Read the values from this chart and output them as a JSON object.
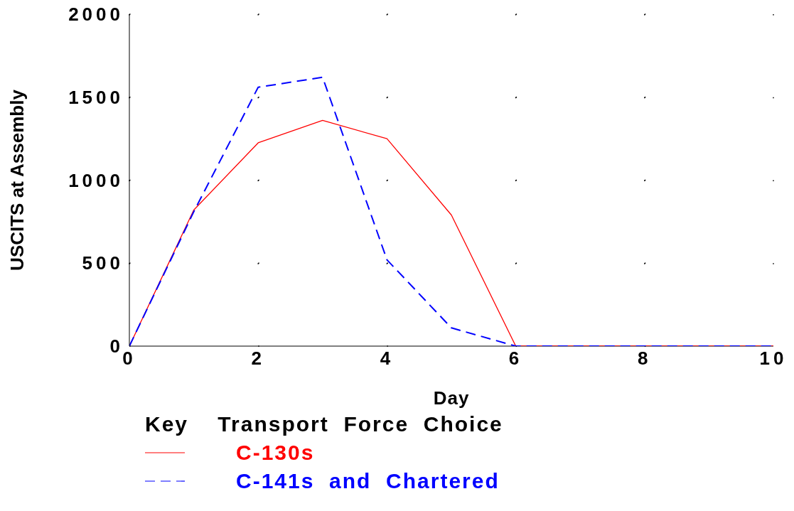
{
  "chart_data": {
    "type": "line",
    "xlabel": "Day",
    "ylabel": "USCITS at Assembly",
    "legend_title": "Key    Transport  Force  Choice",
    "legend": "bottom",
    "grid": true,
    "marker": "none",
    "x": [
      0,
      1,
      2,
      3,
      4,
      5,
      6,
      7,
      8,
      9,
      10
    ],
    "series": [
      {
        "name": "C-130s",
        "color": "#ff0000",
        "line_style": "solid",
        "values": [
          0,
          820,
          1225,
          1360,
          1250,
          790,
          0,
          0,
          0,
          0,
          0
        ]
      },
      {
        "name": "C-141s  and  Chartered",
        "color": "#0000ff",
        "line_style": "dashed",
        "values": [
          0,
          810,
          1560,
          1620,
          520,
          110,
          0,
          0,
          0,
          0,
          0
        ]
      }
    ],
    "xlim": [
      0,
      10
    ],
    "xticks": [
      0,
      2,
      4,
      6,
      8,
      10
    ],
    "ylim": [
      0,
      2000
    ],
    "yticks": [
      0,
      500,
      1000,
      1500,
      2000
    ]
  }
}
